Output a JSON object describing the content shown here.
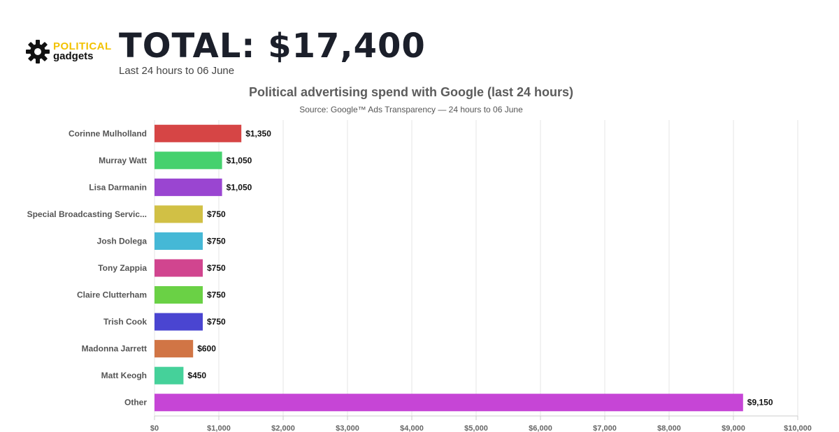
{
  "header": {
    "logo_top": "POLITICAL",
    "logo_bottom": "gadgets",
    "total": "TOTAL: $17,400",
    "subtitle": "Last 24 hours to 06 June"
  },
  "icons": {
    "logo": "gear-icon"
  },
  "chart_data": {
    "type": "bar",
    "orientation": "horizontal",
    "title": "Political advertising spend with Google (last 24 hours)",
    "subtitle": "Source: Google™ Ads Transparency — 24 hours to 06 June",
    "categories": [
      "Corinne Mulholland",
      "Murray Watt",
      "Lisa Darmanin",
      "Special Broadcasting Servic...",
      "Josh Dolega",
      "Tony Zappia",
      "Claire Clutterham",
      "Trish Cook",
      "Madonna Jarrett",
      "Matt Keogh",
      "Other"
    ],
    "values": [
      1350,
      1050,
      1050,
      750,
      750,
      750,
      750,
      750,
      600,
      450,
      9150
    ],
    "value_labels": [
      "$1,350",
      "$1,050",
      "$1,050",
      "$750",
      "$750",
      "$750",
      "$750",
      "$750",
      "$600",
      "$450",
      "$9,150"
    ],
    "colors": [
      "#d64545",
      "#45d16e",
      "#9a45d1",
      "#d1c045",
      "#45b8d6",
      "#d1458f",
      "#6ad145",
      "#4a45d1",
      "#d17545",
      "#45d19a",
      "#c645d6"
    ],
    "xlim": [
      0,
      10000
    ],
    "xticks": [
      0,
      1000,
      2000,
      3000,
      4000,
      5000,
      6000,
      7000,
      8000,
      9000,
      10000
    ],
    "xtick_labels": [
      "$0",
      "$1,000",
      "$2,000",
      "$3,000",
      "$4,000",
      "$5,000",
      "$6,000",
      "$7,000",
      "$8,000",
      "$9,000",
      "$10,000"
    ],
    "grid": true,
    "legend": "none"
  }
}
